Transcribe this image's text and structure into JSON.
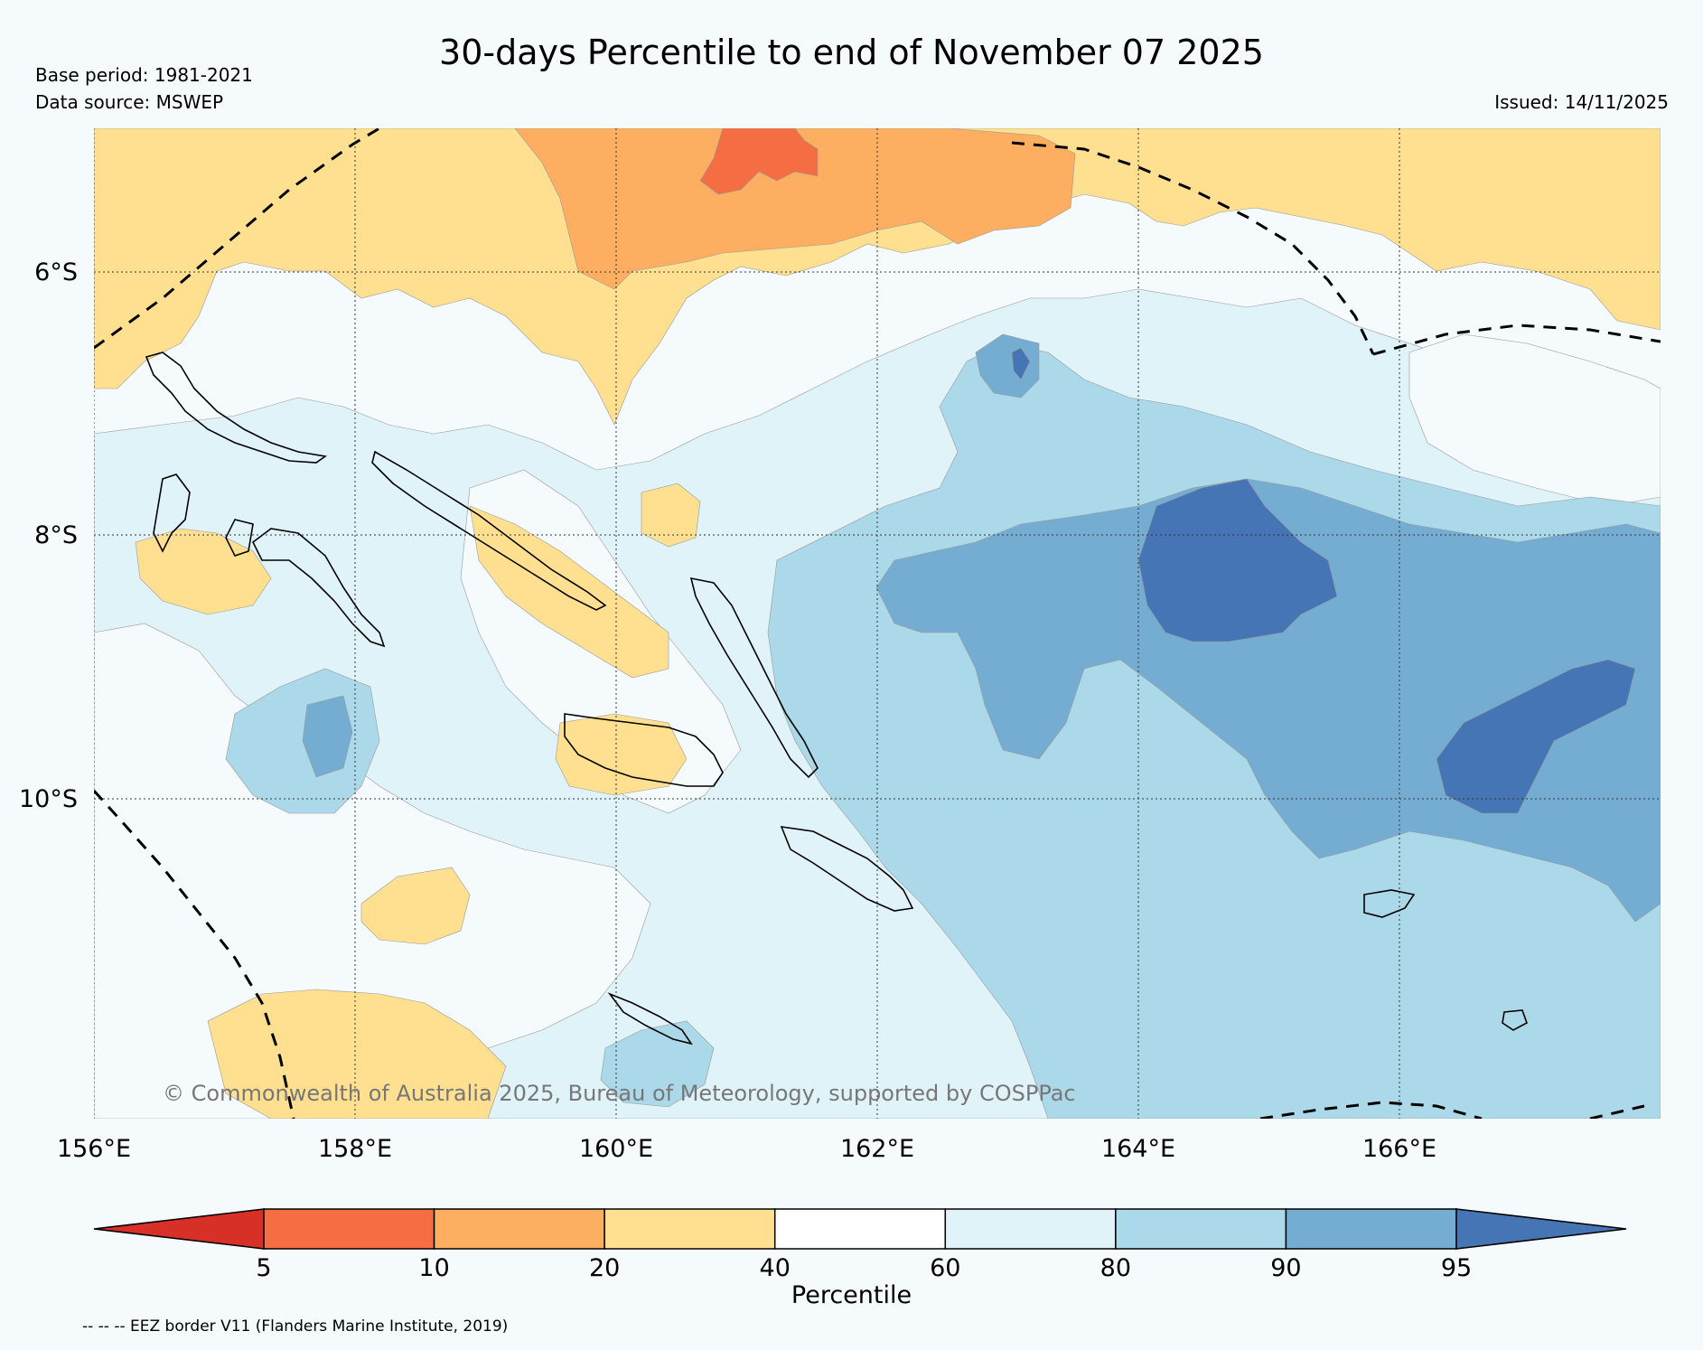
{
  "header": {
    "title": "30-days Percentile to end of November 07 2025",
    "base_period": "Base period: 1981-2021",
    "data_source": "Data source: MSWEP",
    "issued": "Issued: 14/11/2025"
  },
  "map": {
    "lat_labels": [
      "6°S",
      "8°S",
      "10°S"
    ],
    "lon_labels": [
      "156°E",
      "158°E",
      "160°E",
      "162°E",
      "164°E",
      "166°E"
    ],
    "copyright": "© Commonwealth of Australia 2025, Bureau of Meteorology, supported by COSPPac"
  },
  "legend": {
    "title": "Percentile",
    "ticks": [
      "5",
      "10",
      "20",
      "40",
      "60",
      "80",
      "90",
      "95"
    ],
    "colors": [
      "#d73027",
      "#f46d43",
      "#fdae61",
      "#fee090",
      "#ffffff",
      "#e0f3f8",
      "#abd9e9",
      "#74add1",
      "#4575b4"
    ]
  },
  "footnote": "-- -- -- EEZ border V11 (Flanders Marine Institute, 2019)"
}
